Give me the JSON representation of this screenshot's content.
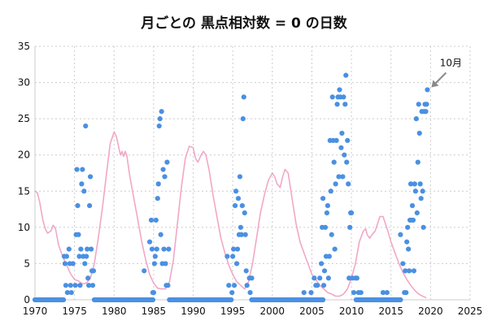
{
  "chart_data": {
    "type": "scatter",
    "title": "月ごとの 黒点相対数 = 0 の日数",
    "xlim": [
      1970,
      2025
    ],
    "ylim": [
      0,
      35
    ],
    "x_ticks": [
      1970,
      1975,
      1980,
      1985,
      1990,
      1995,
      2000,
      2005,
      2010,
      2015,
      2020,
      2025
    ],
    "y_ticks": [
      0,
      5,
      10,
      15,
      20,
      25,
      30,
      35
    ],
    "grid": "dashed",
    "annotation": {
      "text": "10月",
      "x": 2019.8,
      "y": 29
    },
    "colors": {
      "points": "#4a90e2",
      "curve": "#f2a7c6",
      "grid": "#cccccc",
      "arrow": "#8a8a8a"
    },
    "series": [
      {
        "kind": "points",
        "points": [
          [
            1973.7,
            6
          ],
          [
            1973.8,
            5
          ],
          [
            1973.9,
            2
          ],
          [
            1974.0,
            6
          ],
          [
            1974.1,
            1
          ],
          [
            1974.3,
            7
          ],
          [
            1974.4,
            5
          ],
          [
            1974.5,
            2
          ],
          [
            1974.6,
            1
          ],
          [
            1974.8,
            5
          ],
          [
            1975.1,
            2
          ],
          [
            1975.2,
            9
          ],
          [
            1975.3,
            18
          ],
          [
            1975.4,
            13
          ],
          [
            1975.5,
            9
          ],
          [
            1975.6,
            6
          ],
          [
            1975.7,
            2
          ],
          [
            1975.8,
            7
          ],
          [
            1975.9,
            16
          ],
          [
            1976.0,
            18
          ],
          [
            1976.1,
            6
          ],
          [
            1976.2,
            15
          ],
          [
            1976.3,
            5
          ],
          [
            1976.4,
            24
          ],
          [
            1976.5,
            6
          ],
          [
            1976.6,
            7
          ],
          [
            1976.7,
            3
          ],
          [
            1976.8,
            2
          ],
          [
            1976.9,
            13
          ],
          [
            1977.0,
            17
          ],
          [
            1977.1,
            7
          ],
          [
            1977.2,
            4
          ],
          [
            1977.3,
            2
          ],
          [
            1977.4,
            4
          ],
          [
            1983.8,
            4
          ],
          [
            1984.5,
            8
          ],
          [
            1984.7,
            11
          ],
          [
            1984.8,
            7
          ],
          [
            1984.9,
            1
          ],
          [
            1985.0,
            1
          ],
          [
            1985.1,
            5
          ],
          [
            1985.2,
            6
          ],
          [
            1985.3,
            11
          ],
          [
            1985.4,
            7
          ],
          [
            1985.5,
            14
          ],
          [
            1985.6,
            16
          ],
          [
            1985.7,
            24
          ],
          [
            1985.8,
            25
          ],
          [
            1985.9,
            9
          ],
          [
            1986.0,
            26
          ],
          [
            1986.1,
            5
          ],
          [
            1986.2,
            18
          ],
          [
            1986.3,
            7
          ],
          [
            1986.4,
            17
          ],
          [
            1986.5,
            5
          ],
          [
            1986.6,
            2
          ],
          [
            1986.7,
            19
          ],
          [
            1986.8,
            2
          ],
          [
            1986.9,
            7
          ],
          [
            1994.3,
            6
          ],
          [
            1994.5,
            2
          ],
          [
            1994.9,
            1
          ],
          [
            1995.0,
            6
          ],
          [
            1995.1,
            7
          ],
          [
            1995.2,
            2
          ],
          [
            1995.3,
            13
          ],
          [
            1995.4,
            15
          ],
          [
            1995.5,
            5
          ],
          [
            1995.6,
            7
          ],
          [
            1995.7,
            14
          ],
          [
            1995.8,
            9
          ],
          [
            1995.9,
            17
          ],
          [
            1996.0,
            10
          ],
          [
            1996.1,
            9
          ],
          [
            1996.2,
            13
          ],
          [
            1996.3,
            25
          ],
          [
            1996.4,
            28
          ],
          [
            1996.5,
            12
          ],
          [
            1996.6,
            9
          ],
          [
            1996.7,
            4
          ],
          [
            1996.8,
            2
          ],
          [
            1997.1,
            3
          ],
          [
            1997.2,
            1
          ],
          [
            1997.4,
            3
          ],
          [
            2004.0,
            1
          ],
          [
            2004.9,
            1
          ],
          [
            2005.3,
            3
          ],
          [
            2005.5,
            2
          ],
          [
            2005.7,
            2
          ],
          [
            2006.0,
            3
          ],
          [
            2006.2,
            5
          ],
          [
            2006.3,
            10
          ],
          [
            2006.4,
            14
          ],
          [
            2006.5,
            2
          ],
          [
            2006.6,
            4
          ],
          [
            2006.7,
            10
          ],
          [
            2006.8,
            6
          ],
          [
            2006.9,
            12
          ],
          [
            2007.0,
            13
          ],
          [
            2007.1,
            3
          ],
          [
            2007.2,
            6
          ],
          [
            2007.3,
            22
          ],
          [
            2007.4,
            15
          ],
          [
            2007.5,
            9
          ],
          [
            2007.6,
            28
          ],
          [
            2007.7,
            22
          ],
          [
            2007.8,
            19
          ],
          [
            2007.9,
            7
          ],
          [
            2008.0,
            16
          ],
          [
            2008.1,
            22
          ],
          [
            2008.2,
            27
          ],
          [
            2008.3,
            28
          ],
          [
            2008.4,
            17
          ],
          [
            2008.5,
            29
          ],
          [
            2008.6,
            28
          ],
          [
            2008.7,
            21
          ],
          [
            2008.8,
            23
          ],
          [
            2008.9,
            17
          ],
          [
            2009.0,
            28
          ],
          [
            2009.1,
            20
          ],
          [
            2009.2,
            27
          ],
          [
            2009.3,
            31
          ],
          [
            2009.4,
            19
          ],
          [
            2009.5,
            22
          ],
          [
            2009.6,
            16
          ],
          [
            2009.7,
            3
          ],
          [
            2009.8,
            10
          ],
          [
            2009.9,
            12
          ],
          [
            2010.0,
            12
          ],
          [
            2010.1,
            3
          ],
          [
            2010.3,
            1
          ],
          [
            2010.5,
            3
          ],
          [
            2010.7,
            3
          ],
          [
            2010.9,
            1
          ],
          [
            2011.2,
            1
          ],
          [
            2014.0,
            1
          ],
          [
            2014.5,
            1
          ],
          [
            2016.2,
            9
          ],
          [
            2016.5,
            5
          ],
          [
            2016.7,
            1
          ],
          [
            2016.8,
            4
          ],
          [
            2016.9,
            1
          ],
          [
            2017.0,
            8
          ],
          [
            2017.1,
            10
          ],
          [
            2017.2,
            7
          ],
          [
            2017.3,
            4
          ],
          [
            2017.4,
            11
          ],
          [
            2017.5,
            16
          ],
          [
            2017.6,
            11
          ],
          [
            2017.7,
            13
          ],
          [
            2017.8,
            11
          ],
          [
            2017.9,
            4
          ],
          [
            2018.0,
            16
          ],
          [
            2018.1,
            15
          ],
          [
            2018.2,
            25
          ],
          [
            2018.3,
            12
          ],
          [
            2018.4,
            19
          ],
          [
            2018.5,
            27
          ],
          [
            2018.6,
            23
          ],
          [
            2018.7,
            16
          ],
          [
            2018.8,
            14
          ],
          [
            2018.9,
            26
          ],
          [
            2019.0,
            15
          ],
          [
            2019.1,
            10
          ],
          [
            2019.2,
            26
          ],
          [
            2019.3,
            27
          ],
          [
            2019.4,
            26
          ],
          [
            2019.5,
            27
          ],
          [
            2019.6,
            29
          ]
        ]
      },
      {
        "kind": "zero-run",
        "value": 0,
        "ranges": [
          [
            1970.0,
            1973.7
          ],
          [
            1977.5,
            1985.0
          ],
          [
            1987.0,
            1994.9
          ],
          [
            1997.4,
            2006.5
          ],
          [
            2010.6,
            2016.2
          ]
        ],
        "step": 0.2
      },
      {
        "kind": "smoothed-curve",
        "points": [
          [
            1970.0,
            15
          ],
          [
            1970.3,
            14.8
          ],
          [
            1970.6,
            13.5
          ],
          [
            1971.0,
            11
          ],
          [
            1971.3,
            9.8
          ],
          [
            1971.6,
            9.2
          ],
          [
            1972.0,
            9.5
          ],
          [
            1972.3,
            10.3
          ],
          [
            1972.6,
            9.8
          ],
          [
            1973.0,
            7.5
          ],
          [
            1973.5,
            6.0
          ],
          [
            1974.0,
            4.8
          ],
          [
            1974.5,
            3.6
          ],
          [
            1975.0,
            2.8
          ],
          [
            1975.5,
            2.6
          ],
          [
            1976.0,
            2.2
          ],
          [
            1976.5,
            2.3
          ],
          [
            1977.0,
            3.0
          ],
          [
            1977.5,
            5.0
          ],
          [
            1978.0,
            8.5
          ],
          [
            1978.5,
            12.5
          ],
          [
            1979.0,
            17.0
          ],
          [
            1979.5,
            21.5
          ],
          [
            1980.0,
            23.2
          ],
          [
            1980.3,
            22.5
          ],
          [
            1980.6,
            21.0
          ],
          [
            1980.8,
            20.0
          ],
          [
            1981.0,
            20.5
          ],
          [
            1981.2,
            19.8
          ],
          [
            1981.4,
            20.5
          ],
          [
            1981.6,
            20.0
          ],
          [
            1982.0,
            17.0
          ],
          [
            1982.5,
            14.0
          ],
          [
            1983.0,
            11.0
          ],
          [
            1983.5,
            8.0
          ],
          [
            1984.0,
            5.5
          ],
          [
            1984.5,
            3.5
          ],
          [
            1985.0,
            2.3
          ],
          [
            1985.5,
            1.6
          ],
          [
            1986.0,
            1.5
          ],
          [
            1986.5,
            1.5
          ],
          [
            1987.0,
            2.5
          ],
          [
            1987.5,
            5.5
          ],
          [
            1988.0,
            10.5
          ],
          [
            1988.5,
            15.5
          ],
          [
            1989.0,
            19.5
          ],
          [
            1989.5,
            21.2
          ],
          [
            1990.0,
            21.0
          ],
          [
            1990.3,
            19.5
          ],
          [
            1990.6,
            19.0
          ],
          [
            1991.0,
            20.0
          ],
          [
            1991.3,
            20.5
          ],
          [
            1991.6,
            20.0
          ],
          [
            1992.0,
            18.0
          ],
          [
            1992.5,
            14.5
          ],
          [
            1993.0,
            11.5
          ],
          [
            1993.5,
            8.5
          ],
          [
            1994.0,
            6.5
          ],
          [
            1994.5,
            4.8
          ],
          [
            1995.0,
            3.5
          ],
          [
            1995.5,
            2.5
          ],
          [
            1996.0,
            2.0
          ],
          [
            1996.5,
            1.5
          ],
          [
            1997.0,
            2.5
          ],
          [
            1997.5,
            5.0
          ],
          [
            1998.0,
            8.5
          ],
          [
            1998.5,
            12.0
          ],
          [
            1999.0,
            14.5
          ],
          [
            1999.5,
            16.5
          ],
          [
            2000.0,
            17.5
          ],
          [
            2000.3,
            17.0
          ],
          [
            2000.6,
            16.0
          ],
          [
            2001.0,
            15.5
          ],
          [
            2001.3,
            17.0
          ],
          [
            2001.6,
            18.0
          ],
          [
            2002.0,
            17.5
          ],
          [
            2002.5,
            14.0
          ],
          [
            2003.0,
            10.5
          ],
          [
            2003.5,
            8.0
          ],
          [
            2004.0,
            6.5
          ],
          [
            2004.5,
            5.0
          ],
          [
            2005.0,
            3.5
          ],
          [
            2005.5,
            2.8
          ],
          [
            2006.0,
            2.0
          ],
          [
            2006.5,
            1.5
          ],
          [
            2007.0,
            1.0
          ],
          [
            2007.5,
            0.8
          ],
          [
            2008.0,
            0.5
          ],
          [
            2008.5,
            0.5
          ],
          [
            2009.0,
            0.8
          ],
          [
            2009.5,
            1.5
          ],
          [
            2010.0,
            3.0
          ],
          [
            2010.5,
            5.0
          ],
          [
            2011.0,
            8.0
          ],
          [
            2011.5,
            9.5
          ],
          [
            2011.8,
            9.8
          ],
          [
            2012.0,
            9.0
          ],
          [
            2012.3,
            8.5
          ],
          [
            2012.6,
            9.0
          ],
          [
            2013.0,
            9.5
          ],
          [
            2013.3,
            10.5
          ],
          [
            2013.6,
            11.5
          ],
          [
            2014.0,
            11.5
          ],
          [
            2014.3,
            10.5
          ],
          [
            2014.6,
            9.5
          ],
          [
            2015.0,
            8.0
          ],
          [
            2015.5,
            6.5
          ],
          [
            2016.0,
            5.0
          ],
          [
            2016.5,
            3.8
          ],
          [
            2017.0,
            2.8
          ],
          [
            2017.5,
            2.0
          ],
          [
            2018.0,
            1.3
          ],
          [
            2018.5,
            0.8
          ],
          [
            2019.0,
            0.5
          ],
          [
            2019.4,
            0.3
          ]
        ]
      }
    ]
  }
}
